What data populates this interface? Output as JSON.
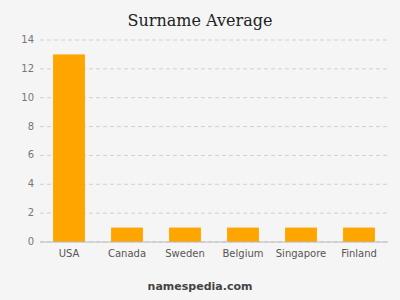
{
  "chart_data": {
    "type": "bar",
    "title": "Surname Average",
    "categories": [
      "USA",
      "Canada",
      "Sweden",
      "Belgium",
      "Singapore",
      "Finland"
    ],
    "values": [
      13,
      1,
      1,
      1,
      1,
      1
    ],
    "color": "#FFA500",
    "ylim": [
      0,
      14
    ],
    "yticks": [
      0,
      2,
      4,
      6,
      8,
      10,
      12,
      14
    ],
    "grid": true,
    "annotations": [
      "namespedia.com"
    ]
  }
}
